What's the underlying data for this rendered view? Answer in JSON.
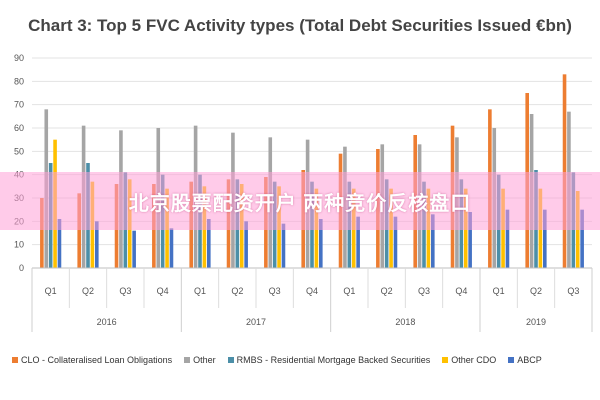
{
  "chart_data": {
    "type": "bar",
    "title": "Chart 3: Top 5 FVC Activity types (Total Debt Securities Issued €bn)",
    "xlabel": "",
    "ylabel": "",
    "ylim": [
      0,
      90
    ],
    "yticks": [
      0,
      10,
      20,
      30,
      40,
      50,
      60,
      70,
      80,
      90
    ],
    "grid": true,
    "legend_position": "bottom",
    "categories": [
      "Q1",
      "Q2",
      "Q3",
      "Q4",
      "Q1",
      "Q2",
      "Q3",
      "Q4",
      "Q1",
      "Q2",
      "Q3",
      "Q4",
      "Q1",
      "Q2",
      "Q3"
    ],
    "groups": [
      {
        "label": "2016",
        "count": 4
      },
      {
        "label": "2017",
        "count": 4
      },
      {
        "label": "2018",
        "count": 4
      },
      {
        "label": "2019",
        "count": 3
      }
    ],
    "series": [
      {
        "name": "CLO - Collateralised Loan Obligations",
        "color": "#ED7D31",
        "values": [
          30,
          32,
          36,
          36,
          37,
          38,
          39,
          42,
          49,
          51,
          57,
          61,
          68,
          75,
          83
        ]
      },
      {
        "name": "Other",
        "color": "#A5A5A5",
        "values": [
          68,
          61,
          59,
          60,
          61,
          58,
          56,
          55,
          52,
          53,
          53,
          56,
          60,
          66,
          67
        ]
      },
      {
        "name": "RMBS - Residential Mortgage Backed Securities",
        "color": "#4C8FA8",
        "values": [
          45,
          45,
          41,
          40,
          40,
          38,
          37,
          37,
          37,
          38,
          37,
          38,
          40,
          42,
          41
        ]
      },
      {
        "name": "Other CDO",
        "color": "#FFC000",
        "values": [
          55,
          37,
          38,
          34,
          35,
          36,
          35,
          34,
          34,
          34,
          34,
          34,
          34,
          34,
          33
        ]
      },
      {
        "name": "ABCP",
        "color": "#4472C4",
        "values": [
          21,
          20,
          16,
          17,
          21,
          20,
          19,
          21,
          22,
          22,
          23,
          24,
          25,
          25,
          25
        ]
      }
    ]
  },
  "watermark": "北京股票配资开户 两种竞价反核盘口"
}
